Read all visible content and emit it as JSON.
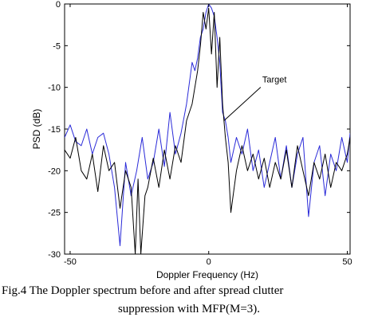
{
  "chart_data": {
    "type": "line",
    "xlabel": "Doppler Frequency (Hz)",
    "ylabel": "PSD (dB)",
    "xlim": [
      -52,
      51
    ],
    "ylim": [
      -30,
      0
    ],
    "xticks": [
      -50,
      0,
      50
    ],
    "yticks": [
      0,
      -5,
      -10,
      -15,
      -20,
      -25,
      -30
    ],
    "grid": false,
    "annotation": {
      "text": "Target",
      "x": 5.5,
      "y": -14
    },
    "series": [
      {
        "color": "#2a2ad8",
        "x": [
          -52,
          -50,
          -48,
          -46,
          -44,
          -42,
          -40,
          -38,
          -36,
          -34,
          -32,
          -30,
          -28,
          -26,
          -24,
          -22,
          -20,
          -18,
          -16,
          -14,
          -12,
          -10,
          -8,
          -6,
          -5,
          -4,
          -3,
          -2,
          -1,
          0,
          1,
          2,
          3,
          4,
          5,
          6,
          7,
          8,
          10,
          12,
          14,
          16,
          18,
          20,
          22,
          24,
          26,
          28,
          30,
          32,
          34,
          36,
          38,
          40,
          42,
          44,
          46,
          48,
          50,
          51
        ],
        "values": [
          -16,
          -14.5,
          -16.5,
          -17,
          -15,
          -18,
          -16,
          -15.5,
          -18,
          -22,
          -29,
          -19,
          -23,
          -20,
          -16,
          -21,
          -19,
          -15,
          -19.5,
          -13,
          -18,
          -15.5,
          -12,
          -7,
          -8,
          -6.5,
          -4,
          -3,
          -1,
          0,
          -0.5,
          -1.5,
          -4,
          -7,
          -13,
          -14,
          -16,
          -19,
          -16,
          -18,
          -15,
          -20,
          -17.5,
          -22,
          -19,
          -16,
          -21,
          -17,
          -22,
          -18,
          -16,
          -25.5,
          -19,
          -17,
          -23,
          -18,
          -20,
          -16,
          -19,
          -15.5
        ]
      },
      {
        "color": "#000000",
        "x": [
          -52,
          -50,
          -48,
          -46,
          -44,
          -42,
          -40,
          -38,
          -36,
          -34,
          -32,
          -30,
          -28,
          -26.5,
          -25.5,
          -24.5,
          -23,
          -22,
          -20,
          -18,
          -16,
          -14,
          -12,
          -10,
          -8,
          -6,
          -4,
          -3,
          -2,
          -1,
          0,
          1,
          2,
          3,
          4,
          5,
          6,
          7,
          8,
          10,
          12,
          14,
          16,
          18,
          20,
          22,
          24,
          26,
          28,
          30,
          32,
          34,
          36,
          38,
          40,
          42,
          44,
          46,
          48,
          50,
          51
        ],
        "values": [
          -17.5,
          -18.5,
          -16,
          -20,
          -21,
          -18,
          -22.5,
          -17,
          -20,
          -19,
          -24.5,
          -20,
          -22,
          -30,
          -21,
          -30,
          -23,
          -22,
          -18.5,
          -22,
          -17.5,
          -21,
          -17,
          -19,
          -14,
          -12,
          -8,
          -5,
          -1,
          -3,
          -0.5,
          -6,
          -1,
          -10,
          -4,
          -12,
          -16,
          -19,
          -25,
          -20,
          -17,
          -20,
          -18,
          -21,
          -18.5,
          -22,
          -19,
          -21,
          -17.5,
          -22,
          -17,
          -20,
          -23,
          -19,
          -21,
          -18,
          -22,
          -19,
          -20,
          -18,
          -16
        ]
      }
    ]
  },
  "caption": {
    "line1": "Fig.4  The Doppler spectrum before and after spread clutter",
    "line2": "suppression with MFP(M=3)."
  }
}
